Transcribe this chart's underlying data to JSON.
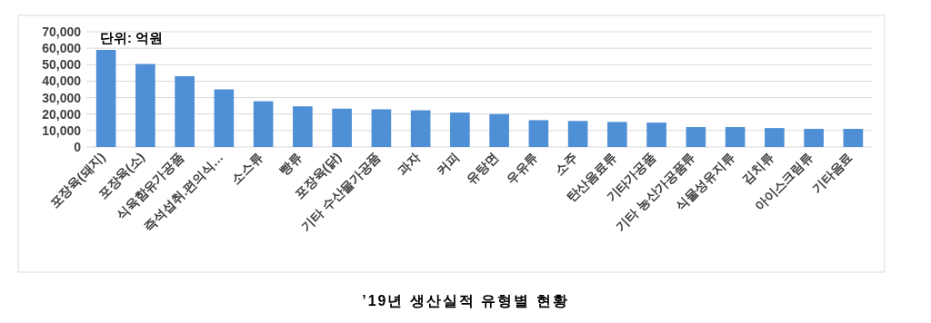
{
  "chart_data": {
    "type": "bar",
    "title": "’19년 생산실적 유형별 현황",
    "annotations": [
      "단위: 억원"
    ],
    "categories": [
      "포장육(돼지)",
      "포장육(소)",
      "식육함유가공품",
      "즉석섭취.편의식…",
      "소스류",
      "빵류",
      "포장육(닭)",
      "기타 수산물가공품",
      "과자",
      "커피",
      "유탕면",
      "우유류",
      "소주",
      "탄산음료류",
      "기타가공품",
      "기타 농산가공품류",
      "식물성유지류",
      "김치류",
      "아이스크림류",
      "기타음료"
    ],
    "values": [
      59000,
      50400,
      43000,
      35000,
      27800,
      24700,
      23300,
      22900,
      22300,
      20900,
      20000,
      16300,
      15800,
      15200,
      14800,
      12100,
      12100,
      11500,
      11000,
      11000
    ],
    "color": "#4f8fd6",
    "ylim": [
      0,
      70000
    ],
    "yticks": [
      {
        "value": 0,
        "label": "0"
      },
      {
        "value": 10000,
        "label": "10,000"
      },
      {
        "value": 20000,
        "label": "20,000"
      },
      {
        "value": 30000,
        "label": "30,000"
      },
      {
        "value": 40000,
        "label": "40,000"
      },
      {
        "value": 50000,
        "label": "50,000"
      },
      {
        "value": 60000,
        "label": "60,000"
      },
      {
        "value": 70000,
        "label": "70,000"
      }
    ],
    "grid": "y"
  }
}
